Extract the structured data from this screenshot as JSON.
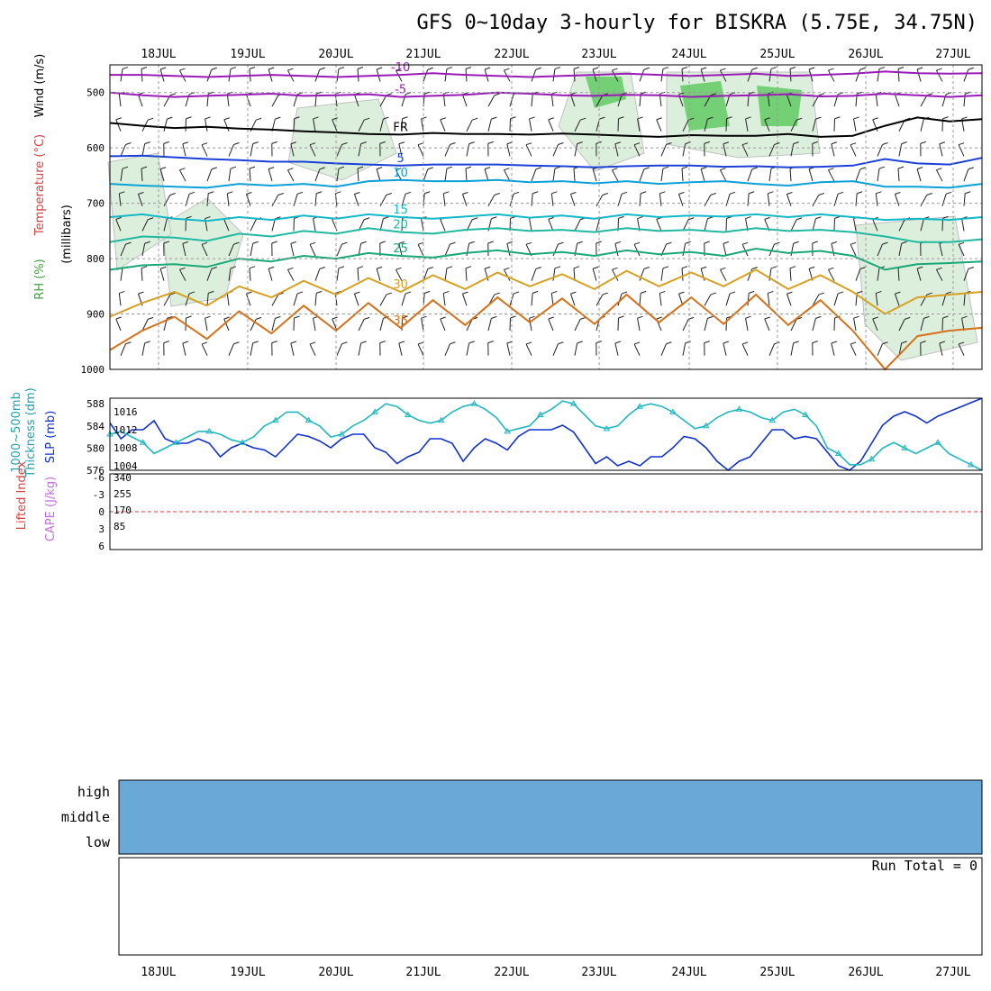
{
  "chart_data": {
    "title": "GFS 0~10day 3-hourly for BISKRA (5.75E, 34.75N)",
    "dates": [
      "18JUL",
      "19JUL",
      "20JUL",
      "21JUL",
      "22JUL",
      "23JUL",
      "24JUL",
      "25JUL",
      "26JUL",
      "27JUL"
    ],
    "panels": [
      {
        "id": "upper_air",
        "type": "contour",
        "labels": [
          "Wind (m/s)",
          "Temperature (°C)",
          "RH (%)",
          "(millibars)"
        ],
        "yticks": [
          "500",
          "600",
          "700",
          "800",
          "900",
          "1000"
        ],
        "ylim": [
          450,
          1000
        ],
        "contours": [
          {
            "label": "-10",
            "level": -10,
            "color": "#9a1ab8",
            "p": [
              468,
              468,
              470,
              472,
              470,
              468,
              470,
              472,
              470,
              468,
              465,
              468,
              470,
              472,
              470,
              468,
              466,
              468,
              470,
              468,
              466,
              470,
              468,
              466,
              462,
              465,
              466,
              465
            ]
          },
          {
            "label": "-5",
            "level": -5,
            "color": "#9a1ab8",
            "p": [
              500,
              505,
              508,
              506,
              504,
              502,
              506,
              505,
              503,
              508,
              506,
              504,
              500,
              502,
              505,
              506,
              504,
              505,
              508,
              506,
              505,
              503,
              507,
              506,
              502,
              505,
              508,
              505
            ]
          },
          {
            "label": "FR",
            "level": 0,
            "color": "#000000",
            "p": [
              555,
              560,
              564,
              562,
              565,
              567,
              570,
              572,
              575,
              576,
              573,
              575,
              575,
              576,
              574,
              576,
              578,
              580,
              577,
              578,
              578,
              575,
              580,
              578,
              560,
              545,
              552,
              548
            ]
          },
          {
            "label": "5",
            "level": 5,
            "color": "#1a40d8",
            "p": [
              615,
              614,
              617,
              620,
              622,
              625,
              625,
              628,
              630,
              632,
              630,
              630,
              630,
              632,
              633,
              635,
              633,
              632,
              632,
              634,
              633,
              635,
              634,
              632,
              620,
              628,
              630,
              618
            ]
          },
          {
            "label": "10",
            "level": 10,
            "color": "#0aa0d8",
            "p": [
              665,
              668,
              670,
              672,
              665,
              668,
              665,
              670,
              660,
              658,
              660,
              660,
              658,
              662,
              660,
              664,
              660,
              665,
              662,
              660,
              665,
              668,
              662,
              660,
              670,
              670,
              672,
              665
            ]
          },
          {
            "label": "15",
            "level": 15,
            "color": "#10b8c8",
            "p": [
              725,
              720,
              728,
              732,
              725,
              730,
              722,
              728,
              720,
              725,
              728,
              724,
              720,
              726,
              722,
              728,
              720,
              725,
              722,
              724,
              720,
              725,
              720,
              725,
              730,
              728,
              730,
              725
            ]
          },
          {
            "label": "20",
            "level": 20,
            "color": "#20b8a0",
            "p": [
              770,
              760,
              762,
              768,
              755,
              760,
              750,
              755,
              745,
              752,
              755,
              748,
              745,
              750,
              748,
              752,
              745,
              750,
              748,
              752,
              745,
              750,
              748,
              752,
              760,
              770,
              770,
              765
            ]
          },
          {
            "label": "25",
            "level": 25,
            "color": "#18a878",
            "p": [
              820,
              812,
              810,
              815,
              800,
              805,
              795,
              800,
              790,
              795,
              798,
              790,
              785,
              792,
              788,
              795,
              785,
              792,
              788,
              795,
              782,
              790,
              786,
              795,
              820,
              810,
              808,
              805
            ]
          },
          {
            "label": "30",
            "level": 30,
            "color": "#d8a020",
            "p": [
              905,
              880,
              860,
              885,
              850,
              870,
              840,
              865,
              835,
              860,
              830,
              855,
              825,
              850,
              828,
              855,
              822,
              850,
              825,
              850,
              820,
              855,
              830,
              860,
              900,
              870,
              865,
              860
            ]
          },
          {
            "label": "35",
            "level": 35,
            "color": "#d87018",
            "p": [
              965,
              930,
              905,
              945,
              895,
              935,
              885,
              930,
              880,
              925,
              875,
              920,
              870,
              915,
              872,
              918,
              865,
              915,
              870,
              918,
              865,
              920,
              875,
              930,
              1000,
              940,
              930,
              925
            ]
          }
        ]
      },
      {
        "id": "slp_thickness",
        "type": "line",
        "labels": [
          "1000~500mb",
          "Thickness (dm)",
          "SLP (mb)"
        ],
        "left_ticks": [
          "576",
          "580",
          "584",
          "588"
        ],
        "right_ticks": [
          "1004",
          "1008",
          "1012",
          "1016"
        ],
        "series": [
          {
            "name": "SLP (mb)",
            "color": "#1030d0",
            "values": [
              1013.5,
              1010,
              1012,
              1012,
              1014,
              1010,
              1009,
              1009,
              1010,
              1009,
              1006,
              1008,
              1009,
              1008,
              1007.5,
              1006,
              1008.5,
              1011,
              1010.5,
              1009.5,
              1008,
              1010,
              1011,
              1011,
              1008,
              1007,
              1004.5,
              1006,
              1007,
              1010,
              1010,
              1009,
              1005,
              1008,
              1010,
              1009,
              1007.5,
              1010.5,
              1012,
              1012,
              1012,
              1013,
              1011.5,
              1008,
              1004.5,
              1006,
              1004,
              1005,
              1004,
              1006,
              1006,
              1008,
              1010.5,
              1010,
              1008,
              1005,
              1003,
              1005,
              1006,
              1009,
              1012,
              1012,
              1010,
              1010.5,
              1010,
              1007,
              1004,
              1003,
              1005,
              1009,
              1013,
              1015,
              1016,
              1015,
              1013.5,
              1015,
              1016,
              1017,
              1018,
              1019
            ]
          },
          {
            "name": "Thickness (dm)",
            "color": "#20b8c0",
            "values": [
              582.5,
              583,
              582,
              581,
              579,
              580,
              581,
              582,
              583,
              583,
              582.5,
              581.5,
              581,
              582,
              584,
              585,
              586.5,
              586.5,
              585,
              584,
              582,
              582.5,
              584,
              585,
              586.5,
              588,
              587.5,
              586,
              585,
              584.5,
              585,
              586.5,
              587.5,
              588,
              587,
              585.5,
              583,
              583.5,
              584,
              586,
              587,
              588.5,
              588,
              586,
              584,
              583.5,
              584,
              586,
              587.5,
              588,
              587.5,
              586.5,
              585,
              583.5,
              584,
              585.5,
              586.5,
              587,
              586.5,
              585.5,
              585,
              586.5,
              587,
              586,
              584,
              580,
              579,
              577,
              577,
              578,
              580,
              581,
              580,
              579,
              580,
              581,
              579,
              578,
              577,
              576
            ]
          }
        ]
      },
      {
        "id": "cape_li",
        "type": "bar+line",
        "labels": [
          "Lifted Index",
          "CAPE (J/kg)"
        ],
        "left_ticks": [
          "-6",
          "-3",
          "0",
          "3",
          "6"
        ],
        "right_ticks": [
          "85",
          "170",
          "255",
          "340"
        ],
        "cape_values": [
          0,
          0,
          0,
          0,
          0,
          0,
          0,
          0,
          0,
          0,
          0,
          0,
          0,
          0,
          0,
          0,
          0,
          0,
          0,
          0,
          0,
          0,
          0,
          0,
          0,
          0,
          0,
          0,
          0,
          0,
          0,
          0,
          0,
          0,
          0,
          0,
          0,
          0,
          0,
          0,
          0,
          0,
          0,
          0,
          0,
          0,
          0,
          0,
          0,
          0,
          0,
          0,
          0,
          0,
          0,
          0,
          0,
          0,
          0,
          0,
          0,
          0,
          0,
          0,
          0,
          0,
          0,
          0,
          0,
          0,
          0,
          0,
          0,
          0,
          0,
          0,
          0,
          0,
          0,
          0
        ]
      }
    ]
  },
  "meta": {
    "run_total_label": "Run Total = 0",
    "cloud_levels": [
      "high",
      "middle",
      "low"
    ]
  }
}
